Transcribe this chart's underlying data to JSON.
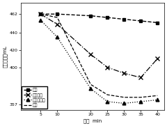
{
  "xlabel": "时间  min",
  "ylabel": "沉降体积，mL",
  "xlim": [
    -1,
    42
  ],
  "ylim": [
    350,
    475
  ],
  "xticks": [
    5,
    10,
    20,
    25,
    30,
    35,
    40
  ],
  "yticks": [
    357,
    400,
    420,
    440,
    462
  ],
  "ytick_labels": [
    "357",
    "400",
    "420",
    "440",
    "462"
  ],
  "background_color": "#ffffff",
  "series": [
    {
      "label": "空白",
      "x": [
        5,
        10,
        20,
        25,
        30,
        35,
        40
      ],
      "y": [
        462,
        462,
        460,
        458,
        456,
        454,
        452
      ],
      "marker": "s",
      "linestyle": "--",
      "linewidth": 1.0,
      "markersize": 3.5
    },
    {
      "label": "化学处理",
      "x": [
        5,
        10,
        20,
        25,
        30,
        35,
        40
      ],
      "y": [
        462,
        450,
        415,
        400,
        393,
        388,
        410
      ],
      "marker": "x",
      "linestyle": "-.",
      "linewidth": 0.9,
      "markersize": 4
    },
    {
      "label": "加氧条件下",
      "x": [
        5,
        10,
        20,
        25,
        30,
        35,
        40
      ],
      "y": [
        455,
        435,
        375,
        360,
        358,
        360,
        362
      ],
      "marker": "^",
      "linestyle": ":",
      "linewidth": 0.9,
      "markersize": 3.5
    },
    {
      "label": "厌氧",
      "x": [
        5,
        10,
        20,
        25,
        30,
        35,
        40
      ],
      "y": [
        462,
        458,
        380,
        368,
        365,
        365,
        367
      ],
      "marker": "None",
      "linestyle": "--",
      "linewidth": 0.9,
      "markersize": 3.5
    }
  ]
}
